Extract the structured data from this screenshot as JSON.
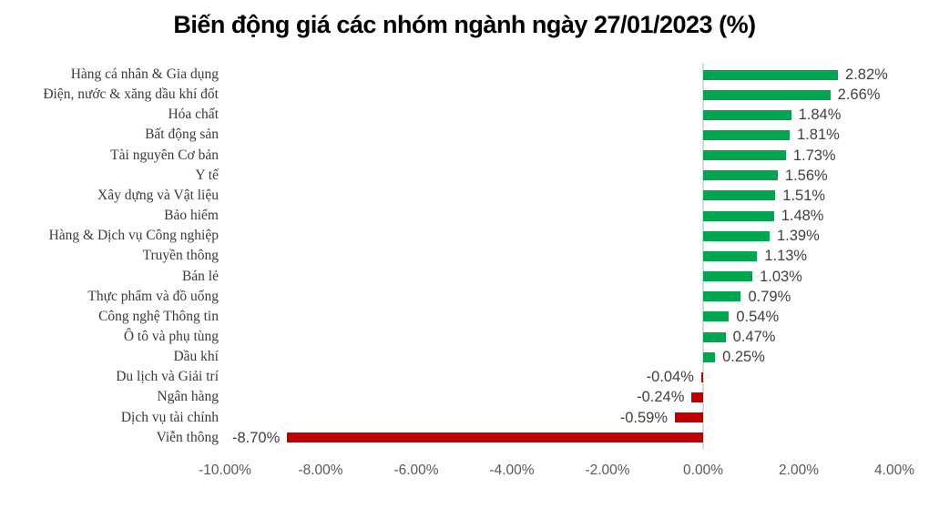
{
  "title": "Biến động giá các nhóm ngành ngày 27/01/2023 (%)",
  "colors": {
    "positive_bar": "#00A550",
    "negative_bar": "#C00000",
    "zero_axis_line": "#D9D9D9",
    "title_text": "#000000",
    "category_text": "#3A3A3A",
    "value_text": "#404040",
    "axis_text": "#595959",
    "background": "#FFFFFF"
  },
  "chart_data": {
    "type": "bar",
    "orientation": "horizontal",
    "title": "Biến động giá các nhóm ngành ngày 27/01/2023 (%)",
    "categories": [
      "Hàng cá nhân & Gia dụng",
      "Điện, nước & xăng dầu khí đốt",
      "Hóa chất",
      "Bất động sản",
      "Tài nguyên Cơ bản",
      "Y tế",
      "Xây dựng và Vật liệu",
      "Bảo hiểm",
      "Hàng & Dịch vụ Công nghiệp",
      "Truyền thông",
      "Bán lẻ",
      "Thực phẩm và đồ uống",
      "Công nghệ Thông tin",
      "Ô tô và phụ tùng",
      "Dầu khí",
      "Du lịch và Giải trí",
      "Ngân hàng",
      "Dịch vụ tài chính",
      "Viễn thông"
    ],
    "values": [
      2.82,
      2.66,
      1.84,
      1.81,
      1.73,
      1.56,
      1.51,
      1.48,
      1.39,
      1.13,
      1.03,
      0.79,
      0.54,
      0.47,
      0.25,
      -0.04,
      -0.24,
      -0.59,
      -8.7
    ],
    "value_labels": [
      "2.82%",
      "2.66%",
      "1.84%",
      "1.81%",
      "1.73%",
      "1.56%",
      "1.51%",
      "1.48%",
      "1.39%",
      "1.13%",
      "1.03%",
      "0.79%",
      "0.54%",
      "0.47%",
      "0.25%",
      "-0.04%",
      "-0.24%",
      "-0.59%",
      "-8.70%"
    ],
    "xlabel": "",
    "ylabel": "",
    "xlim": [
      -10,
      4
    ],
    "x_tick_values": [
      -10,
      -8,
      -6,
      -4,
      -2,
      0,
      2,
      4
    ],
    "x_tick_labels": [
      "-10.00%",
      "-8.00%",
      "-6.00%",
      "-4.00%",
      "-2.00%",
      "0.00%",
      "2.00%",
      "4.00%"
    ],
    "grid": false,
    "legend": "none",
    "data_labels": "outside-end"
  }
}
